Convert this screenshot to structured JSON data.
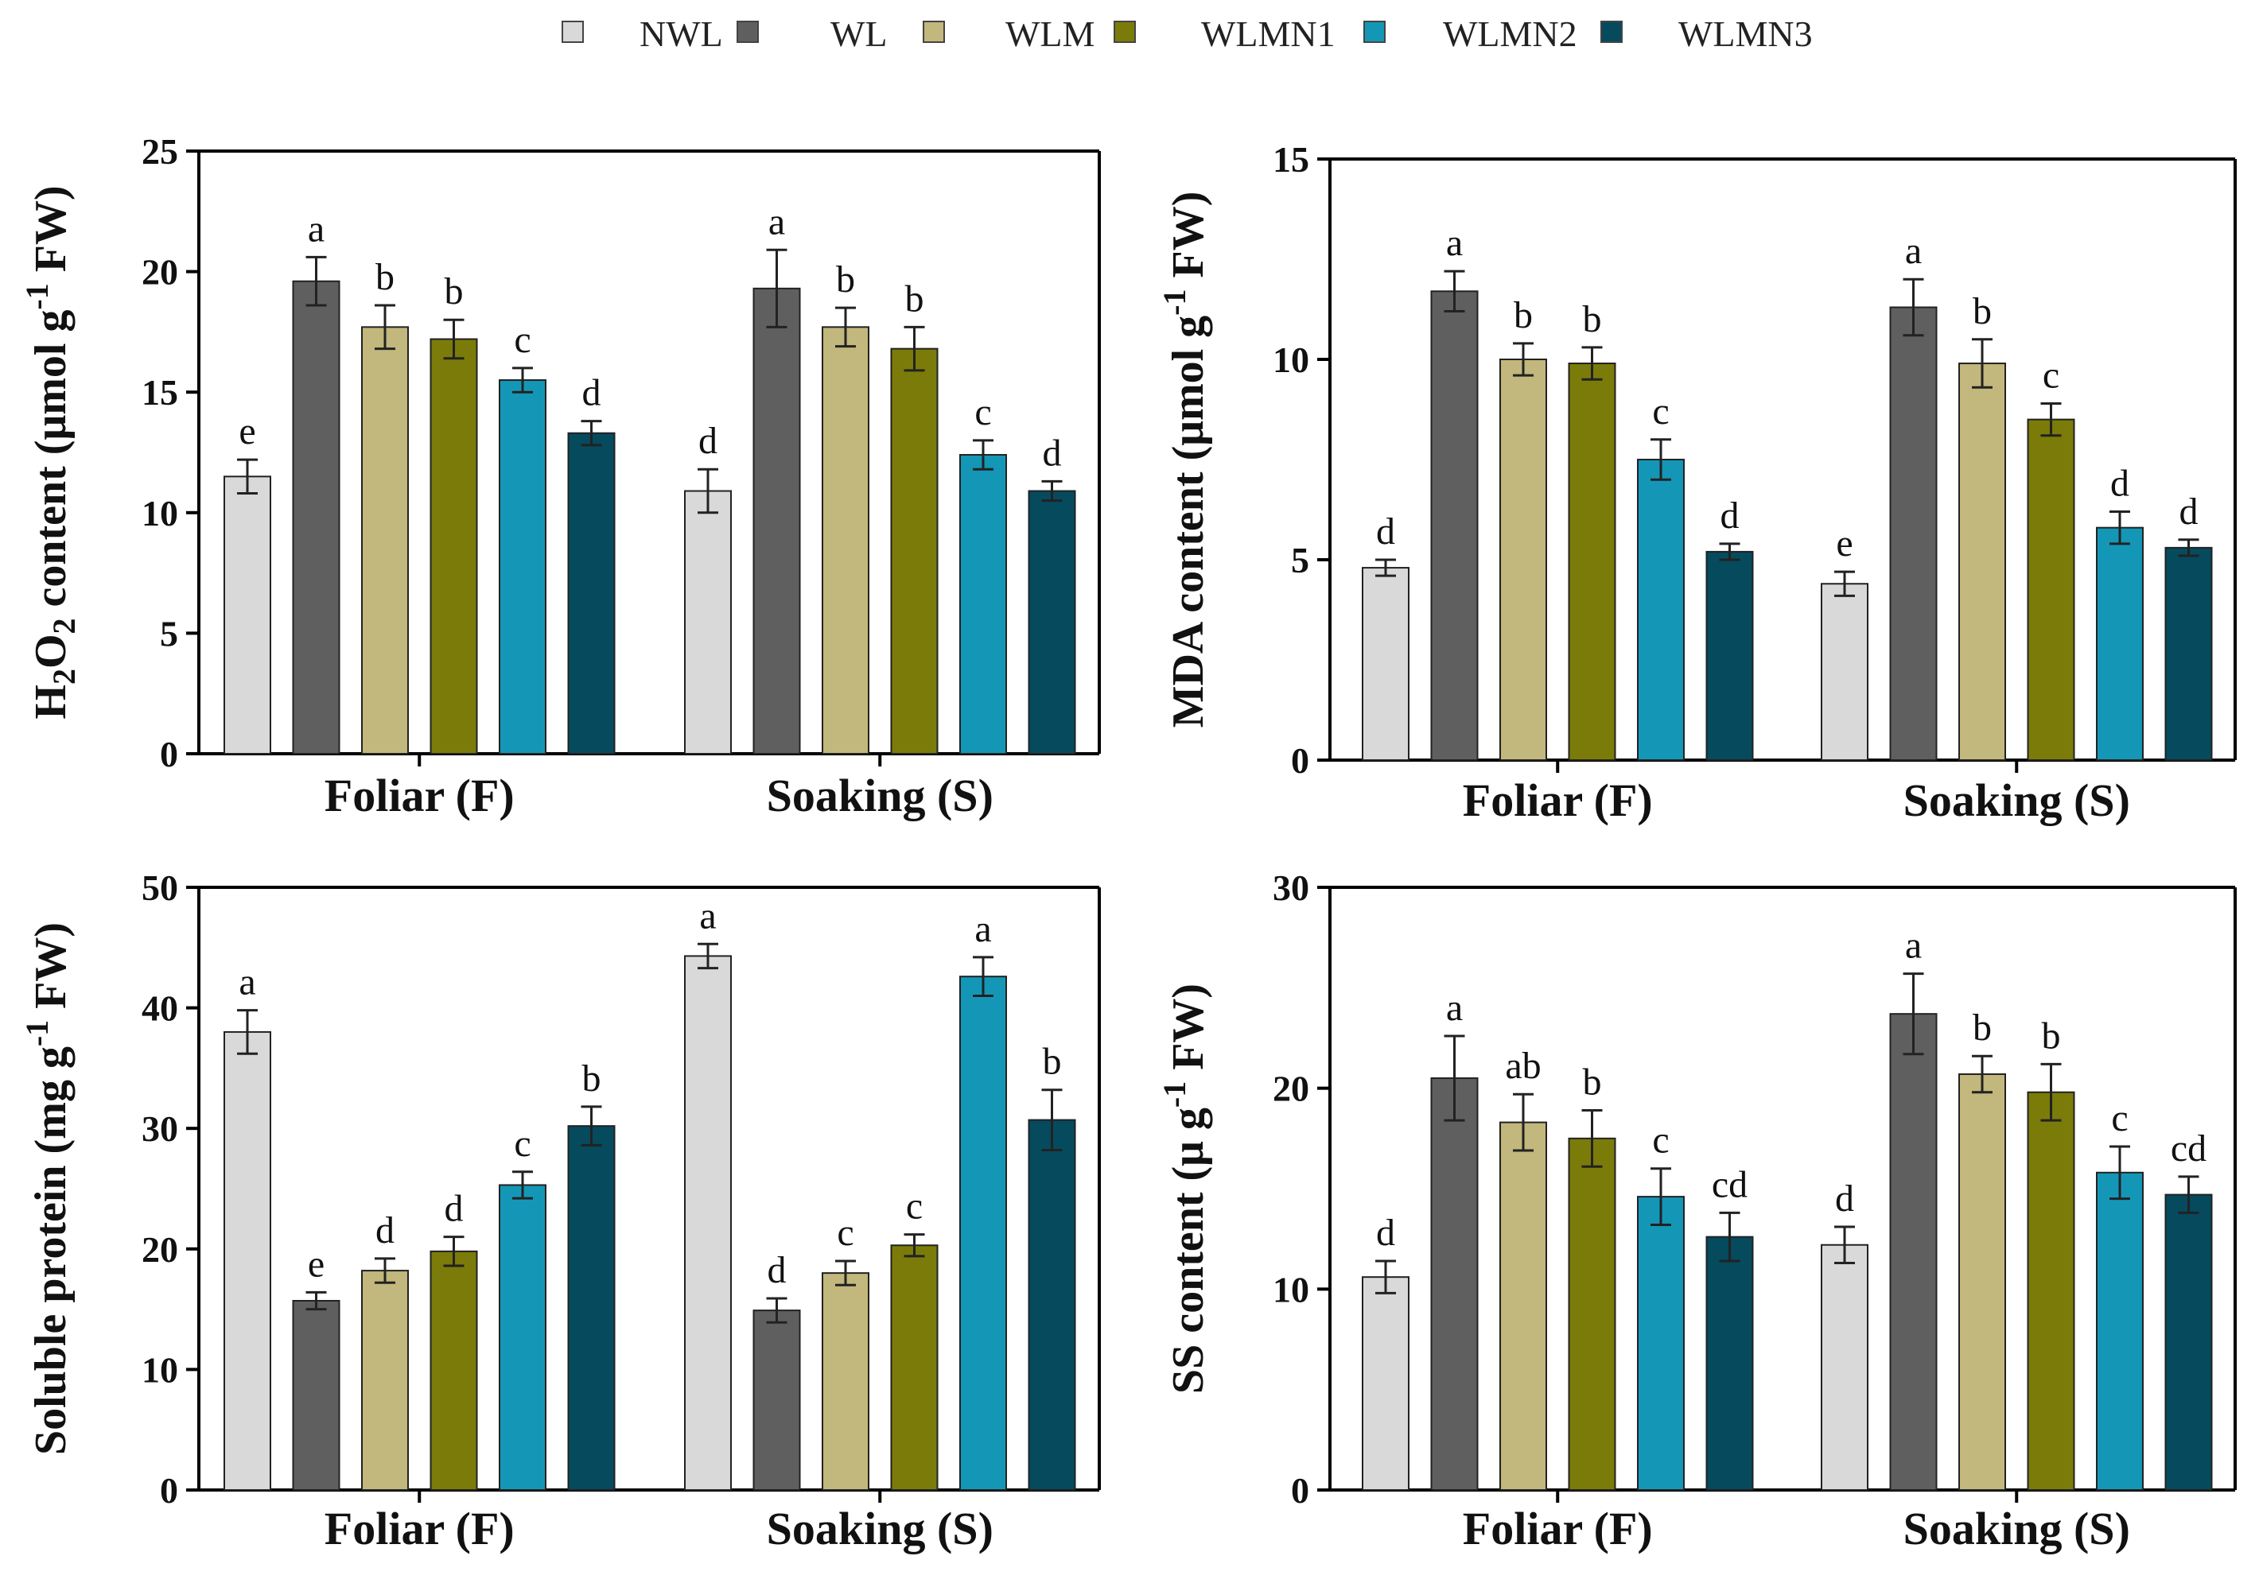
{
  "legend": {
    "items": [
      {
        "label": "NWL",
        "color": "#d9d9d9"
      },
      {
        "label": "WL",
        "color": "#5f5f5f"
      },
      {
        "label": "WLM",
        "color": "#c2b77c"
      },
      {
        "label": "WLMN1",
        "color": "#7b7b0a"
      },
      {
        "label": "WLMN2",
        "color": "#1497b6"
      },
      {
        "label": "WLMN3",
        "color": "#064a5e"
      }
    ]
  },
  "chart_data": [
    {
      "type": "bar",
      "panel": "top-left",
      "ylabel_prefix": "H",
      "ylabel_sub1": "2",
      "ylabel_mid": "O",
      "ylabel_sub2": "2",
      "ylabel_main": " content (μmol g",
      "ylabel_sup": "-1",
      "ylabel_end": " FW)",
      "ylim": [
        0,
        25
      ],
      "yticks": [
        0,
        5,
        10,
        15,
        20,
        25
      ],
      "categories": [
        "Foliar (F)",
        "Soaking (S)"
      ],
      "series": [
        {
          "name": "NWL",
          "values": [
            11.5,
            10.9
          ],
          "errors": [
            0.7,
            0.9
          ],
          "letters": [
            "e",
            "d"
          ]
        },
        {
          "name": "WL",
          "values": [
            19.6,
            19.3
          ],
          "errors": [
            1.0,
            1.6
          ],
          "letters": [
            "a",
            "a"
          ]
        },
        {
          "name": "WLM",
          "values": [
            17.7,
            17.7
          ],
          "errors": [
            0.9,
            0.8
          ],
          "letters": [
            "b",
            "b"
          ]
        },
        {
          "name": "WLMN1",
          "values": [
            17.2,
            16.8
          ],
          "errors": [
            0.8,
            0.9
          ],
          "letters": [
            "b",
            "b"
          ]
        },
        {
          "name": "WLMN2",
          "values": [
            15.5,
            12.4
          ],
          "errors": [
            0.5,
            0.6
          ],
          "letters": [
            "c",
            "c"
          ]
        },
        {
          "name": "WLMN3",
          "values": [
            13.3,
            10.9
          ],
          "errors": [
            0.5,
            0.4
          ],
          "letters": [
            "d",
            "d"
          ]
        }
      ]
    },
    {
      "type": "bar",
      "panel": "top-right",
      "ylabel_main": "MDA content (μmol g",
      "ylabel_sup": "-1",
      "ylabel_end": " FW)",
      "ylim": [
        0,
        15
      ],
      "yticks": [
        0,
        5,
        10,
        15
      ],
      "categories": [
        "Foliar (F)",
        "Soaking (S)"
      ],
      "series": [
        {
          "name": "NWL",
          "values": [
            4.8,
            4.4
          ],
          "errors": [
            0.2,
            0.3
          ],
          "letters": [
            "d",
            "e"
          ]
        },
        {
          "name": "WL",
          "values": [
            11.7,
            11.3
          ],
          "errors": [
            0.5,
            0.7
          ],
          "letters": [
            "a",
            "a"
          ]
        },
        {
          "name": "WLM",
          "values": [
            10.0,
            9.9
          ],
          "errors": [
            0.4,
            0.6
          ],
          "letters": [
            "b",
            "b"
          ]
        },
        {
          "name": "WLMN1",
          "values": [
            9.9,
            8.5
          ],
          "errors": [
            0.4,
            0.4
          ],
          "letters": [
            "b",
            "c"
          ]
        },
        {
          "name": "WLMN2",
          "values": [
            7.5,
            5.8
          ],
          "errors": [
            0.5,
            0.4
          ],
          "letters": [
            "c",
            "d"
          ]
        },
        {
          "name": "WLMN3",
          "values": [
            5.2,
            5.3
          ],
          "errors": [
            0.2,
            0.2
          ],
          "letters": [
            "d",
            "d"
          ]
        }
      ]
    },
    {
      "type": "bar",
      "panel": "bottom-left",
      "ylabel_main": "Soluble protein  (mg g",
      "ylabel_sup": "-1",
      "ylabel_end": " FW)",
      "ylim": [
        0,
        50
      ],
      "yticks": [
        0,
        10,
        20,
        30,
        40,
        50
      ],
      "categories": [
        "Foliar (F)",
        "Soaking (S)"
      ],
      "series": [
        {
          "name": "NWL",
          "values": [
            38.0,
            44.3
          ],
          "errors": [
            1.8,
            1.0
          ],
          "letters": [
            "a",
            "a"
          ]
        },
        {
          "name": "WL",
          "values": [
            15.7,
            14.9
          ],
          "errors": [
            0.7,
            1.0
          ],
          "letters": [
            "e",
            "d"
          ]
        },
        {
          "name": "WLM",
          "values": [
            18.2,
            18.0
          ],
          "errors": [
            1.0,
            1.0
          ],
          "letters": [
            "d",
            "c"
          ]
        },
        {
          "name": "WLMN1",
          "values": [
            19.8,
            20.3
          ],
          "errors": [
            1.2,
            0.9
          ],
          "letters": [
            "d",
            "c"
          ]
        },
        {
          "name": "WLMN2",
          "values": [
            25.3,
            42.6
          ],
          "errors": [
            1.1,
            1.6
          ],
          "letters": [
            "c",
            "a"
          ]
        },
        {
          "name": "WLMN3",
          "values": [
            30.2,
            30.7
          ],
          "errors": [
            1.6,
            2.5
          ],
          "letters": [
            "b",
            "b"
          ]
        }
      ]
    },
    {
      "type": "bar",
      "panel": "bottom-right",
      "ylabel_main": "SS content (μ g",
      "ylabel_sup": "-1",
      "ylabel_end": " FW)",
      "ylim": [
        0,
        30
      ],
      "yticks": [
        0,
        10,
        20,
        30
      ],
      "categories": [
        "Foliar (F)",
        "Soaking (S)"
      ],
      "series": [
        {
          "name": "NWL",
          "values": [
            10.6,
            12.2
          ],
          "errors": [
            0.8,
            0.9
          ],
          "letters": [
            "d",
            "d"
          ]
        },
        {
          "name": "WL",
          "values": [
            20.5,
            23.7
          ],
          "errors": [
            2.1,
            2.0
          ],
          "letters": [
            "a",
            "a"
          ]
        },
        {
          "name": "WLM",
          "values": [
            18.3,
            20.7
          ],
          "errors": [
            1.4,
            0.9
          ],
          "letters": [
            "ab",
            "b"
          ]
        },
        {
          "name": "WLMN1",
          "values": [
            17.5,
            19.8
          ],
          "errors": [
            1.4,
            1.4
          ],
          "letters": [
            "b",
            "b"
          ]
        },
        {
          "name": "WLMN2",
          "values": [
            14.6,
            15.8
          ],
          "errors": [
            1.4,
            1.3
          ],
          "letters": [
            "c",
            "c"
          ]
        },
        {
          "name": "WLMN3",
          "values": [
            12.6,
            14.7
          ],
          "errors": [
            1.2,
            0.9
          ],
          "letters": [
            "cd",
            "cd"
          ]
        }
      ]
    }
  ]
}
